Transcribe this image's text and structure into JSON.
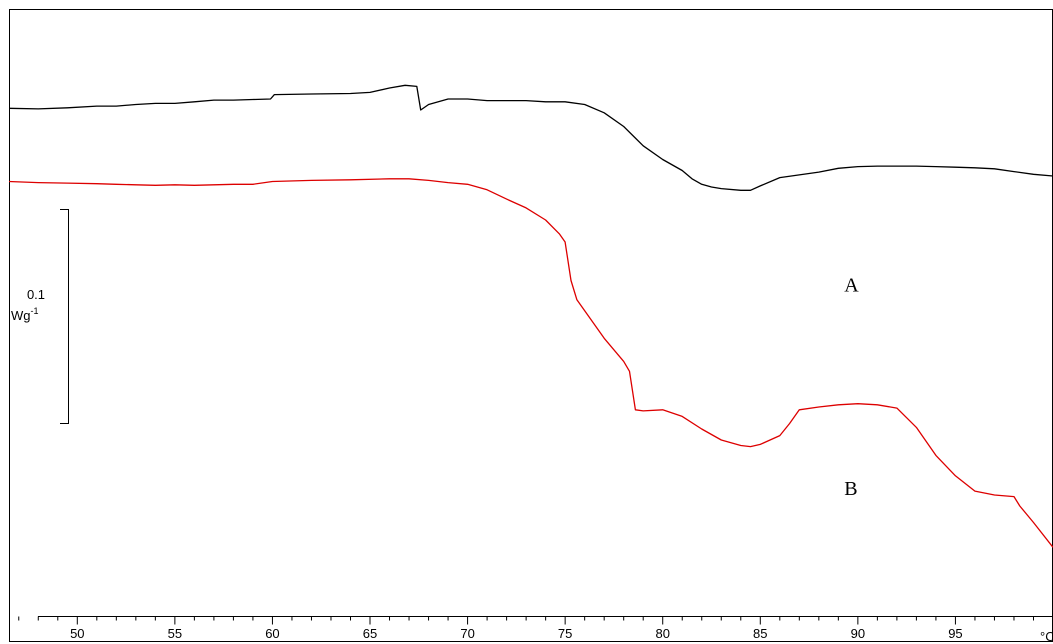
{
  "chart_data": {
    "type": "line",
    "title": "",
    "xlabel": "",
    "ylabel": "",
    "x_unit": "°C",
    "xlim": [
      46.5,
      100
    ],
    "ylim": [
      0,
      1
    ],
    "grid": false,
    "x_ticks_major": [
      50,
      55,
      60,
      65,
      70,
      75,
      80,
      85,
      90,
      95
    ],
    "scale_bar": {
      "value": "0.1",
      "unit": "Wg",
      "unit_exponent": "-1"
    },
    "series": [
      {
        "name": "A",
        "color": "#000000",
        "label_at": [
          89.3,
          0.57
        ],
        "points": [
          [
            46.5,
            0.903
          ],
          [
            48,
            0.902
          ],
          [
            49.5,
            0.904
          ],
          [
            51,
            0.907
          ],
          [
            52,
            0.907
          ],
          [
            53,
            0.91
          ],
          [
            54,
            0.912
          ],
          [
            55,
            0.912
          ],
          [
            56,
            0.915
          ],
          [
            57,
            0.918
          ],
          [
            58,
            0.918
          ],
          [
            59,
            0.919
          ],
          [
            59.9,
            0.92
          ],
          [
            60.1,
            0.928
          ],
          [
            62,
            0.929
          ],
          [
            64,
            0.93
          ],
          [
            65,
            0.932
          ],
          [
            66,
            0.94
          ],
          [
            66.8,
            0.945
          ],
          [
            67.4,
            0.943
          ],
          [
            67.6,
            0.9
          ],
          [
            68,
            0.91
          ],
          [
            69,
            0.92
          ],
          [
            70,
            0.92
          ],
          [
            71,
            0.917
          ],
          [
            72,
            0.917
          ],
          [
            73,
            0.917
          ],
          [
            74,
            0.915
          ],
          [
            75,
            0.915
          ],
          [
            76,
            0.91
          ],
          [
            77,
            0.895
          ],
          [
            78,
            0.87
          ],
          [
            79,
            0.835
          ],
          [
            80,
            0.81
          ],
          [
            81,
            0.79
          ],
          [
            81.5,
            0.775
          ],
          [
            82,
            0.765
          ],
          [
            82.5,
            0.76
          ],
          [
            83,
            0.757
          ],
          [
            84,
            0.754
          ],
          [
            84.5,
            0.754
          ],
          [
            85,
            0.762
          ],
          [
            86,
            0.777
          ],
          [
            87,
            0.782
          ],
          [
            88,
            0.787
          ],
          [
            89,
            0.794
          ],
          [
            90,
            0.797
          ],
          [
            91,
            0.798
          ],
          [
            92,
            0.798
          ],
          [
            93,
            0.798
          ],
          [
            94,
            0.797
          ],
          [
            95,
            0.796
          ],
          [
            96,
            0.795
          ],
          [
            97,
            0.793
          ],
          [
            98,
            0.788
          ],
          [
            99,
            0.783
          ],
          [
            100,
            0.78
          ]
        ]
      },
      {
        "name": "B",
        "color": "#dd0000",
        "label_at": [
          89.3,
          0.2
        ],
        "points": [
          [
            46.5,
            0.77
          ],
          [
            48,
            0.768
          ],
          [
            49.5,
            0.767
          ],
          [
            51,
            0.766
          ],
          [
            52,
            0.765
          ],
          [
            53,
            0.764
          ],
          [
            54,
            0.763
          ],
          [
            55,
            0.764
          ],
          [
            56,
            0.763
          ],
          [
            57,
            0.764
          ],
          [
            58,
            0.765
          ],
          [
            59,
            0.765
          ],
          [
            60,
            0.77
          ],
          [
            62,
            0.772
          ],
          [
            64,
            0.773
          ],
          [
            66,
            0.775
          ],
          [
            67,
            0.775
          ],
          [
            68,
            0.772
          ],
          [
            69,
            0.768
          ],
          [
            70,
            0.765
          ],
          [
            71,
            0.755
          ],
          [
            72,
            0.738
          ],
          [
            73,
            0.722
          ],
          [
            74,
            0.7
          ],
          [
            74.7,
            0.675
          ],
          [
            75,
            0.66
          ],
          [
            75.3,
            0.59
          ],
          [
            75.6,
            0.555
          ],
          [
            76,
            0.535
          ],
          [
            77,
            0.485
          ],
          [
            78,
            0.443
          ],
          [
            78.3,
            0.425
          ],
          [
            78.6,
            0.355
          ],
          [
            79,
            0.353
          ],
          [
            80,
            0.355
          ],
          [
            81,
            0.343
          ],
          [
            82,
            0.32
          ],
          [
            83,
            0.3
          ],
          [
            84,
            0.29
          ],
          [
            84.5,
            0.288
          ],
          [
            85,
            0.292
          ],
          [
            86,
            0.308
          ],
          [
            86.5,
            0.33
          ],
          [
            87,
            0.355
          ],
          [
            88,
            0.36
          ],
          [
            89,
            0.364
          ],
          [
            90,
            0.366
          ],
          [
            91,
            0.364
          ],
          [
            92,
            0.358
          ],
          [
            93,
            0.323
          ],
          [
            94,
            0.272
          ],
          [
            95,
            0.235
          ],
          [
            96,
            0.207
          ],
          [
            97,
            0.2
          ],
          [
            98,
            0.197
          ],
          [
            98.3,
            0.18
          ],
          [
            99,
            0.15
          ],
          [
            100,
            0.105
          ]
        ]
      }
    ]
  }
}
